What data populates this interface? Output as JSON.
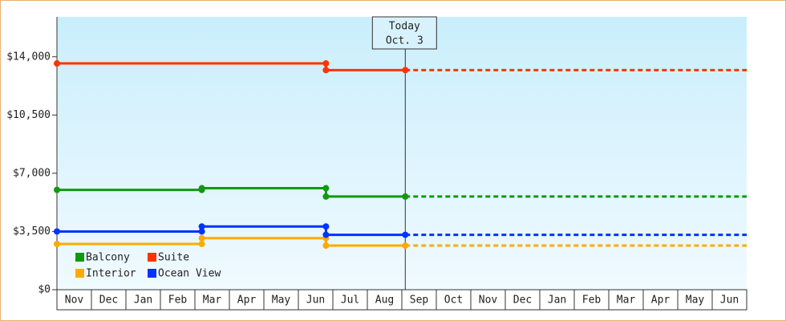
{
  "chart_data": {
    "type": "line",
    "step": true,
    "categories": [
      "Nov",
      "Dec",
      "Jan",
      "Feb",
      "Mar",
      "Apr",
      "May",
      "Jun",
      "Jul",
      "Aug",
      "Sep",
      "Oct",
      "Nov",
      "Dec",
      "Jan",
      "Feb",
      "Mar",
      "Apr",
      "May",
      "Jun"
    ],
    "xlim": [
      0,
      20
    ],
    "ylim": [
      0,
      16400
    ],
    "yticks": [
      {
        "value": 0,
        "label": "$0"
      },
      {
        "value": 3500,
        "label": "$3,500"
      },
      {
        "value": 7000,
        "label": "$7,000"
      },
      {
        "value": 10500,
        "label": "$10,500"
      },
      {
        "value": 14000,
        "label": "$14,000"
      }
    ],
    "today": {
      "label": "Today",
      "date": "Oct. 3",
      "x": 10.1
    },
    "legend": "lower left",
    "series": [
      {
        "name": "Balcony",
        "color": "#119911",
        "x": [
          0,
          4.2,
          4.2,
          7.8,
          7.8,
          10.1
        ],
        "values": [
          6000,
          6000,
          6100,
          6100,
          5600,
          5600
        ]
      },
      {
        "name": "Suite",
        "color": "#ff3300",
        "x": [
          0,
          7.8,
          7.8,
          10.1
        ],
        "values": [
          13600,
          13600,
          13200,
          13200
        ]
      },
      {
        "name": "Interior",
        "color": "#ffaa00",
        "x": [
          0,
          4.2,
          4.2,
          7.8,
          7.8,
          10.1
        ],
        "values": [
          2750,
          2750,
          3100,
          3100,
          2650,
          2650
        ]
      },
      {
        "name": "Ocean View",
        "color": "#0033ff",
        "x": [
          0,
          4.2,
          4.2,
          7.8,
          7.8,
          10.1
        ],
        "values": [
          3500,
          3500,
          3800,
          3800,
          3300,
          3300
        ]
      }
    ]
  }
}
